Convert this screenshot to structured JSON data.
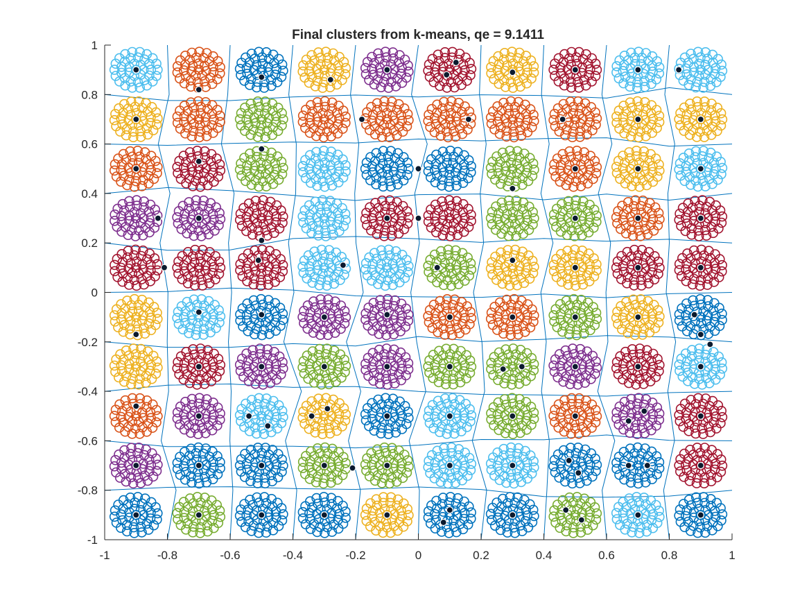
{
  "chart_data": {
    "type": "scatter",
    "title": "Final clusters from k-means, qe =  9.1411",
    "xlabel": "",
    "ylabel": "",
    "xlim": [
      -1,
      1
    ],
    "ylim": [
      -1,
      1
    ],
    "x_ticks": [
      "-1",
      "-0.8",
      "-0.6",
      "-0.4",
      "-0.2",
      "0",
      "0.2",
      "0.4",
      "0.6",
      "0.8",
      "1"
    ],
    "y_ticks": [
      "1",
      "0.8",
      "0.6",
      "0.4",
      "0.2",
      "0",
      "-0.2",
      "-0.4",
      "-0.6",
      "-0.8",
      "-1"
    ],
    "grid": false,
    "palette": [
      "#0072BD",
      "#D95319",
      "#EDB120",
      "#7E2F8E",
      "#77AC30",
      "#4DBEEE",
      "#A2142F"
    ],
    "voronoi_color": "#0072BD",
    "blob_centers": {
      "x": [
        -0.9,
        -0.7,
        -0.5,
        -0.3,
        -0.1,
        0.1,
        0.3,
        0.5,
        0.7,
        0.9
      ],
      "y": [
        0.9,
        0.7,
        0.5,
        0.3,
        0.1,
        -0.1,
        -0.3,
        -0.5,
        -0.7,
        -0.9
      ],
      "colors": [
        [
          5,
          1,
          0,
          2,
          3,
          6,
          2,
          6,
          5,
          5
        ],
        [
          2,
          1,
          4,
          1,
          1,
          1,
          1,
          1,
          2,
          2
        ],
        [
          1,
          6,
          4,
          5,
          0,
          0,
          4,
          1,
          2,
          5
        ],
        [
          3,
          3,
          6,
          5,
          6,
          6,
          4,
          4,
          1,
          6
        ],
        [
          6,
          6,
          6,
          5,
          5,
          4,
          2,
          2,
          6,
          6
        ],
        [
          2,
          5,
          0,
          3,
          3,
          1,
          1,
          4,
          2,
          0
        ],
        [
          2,
          6,
          3,
          4,
          3,
          4,
          4,
          3,
          6,
          5
        ],
        [
          1,
          3,
          5,
          2,
          0,
          5,
          4,
          1,
          3,
          6
        ],
        [
          3,
          0,
          0,
          4,
          4,
          5,
          5,
          0,
          0,
          6
        ],
        [
          0,
          4,
          0,
          0,
          2,
          0,
          0,
          4,
          5,
          0
        ]
      ]
    },
    "centroids": {
      "x": [
        -0.9,
        -0.7,
        -0.5,
        -0.28,
        -0.1,
        0.12,
        0.09,
        0.3,
        0.5,
        0.7,
        0.83,
        -0.9,
        -0.7,
        -0.18,
        0.16,
        0.46,
        0.7,
        0.9,
        -0.9,
        -0.7,
        -0.5,
        0.0,
        0.3,
        0.5,
        0.7,
        0.9,
        -0.81,
        -0.5,
        -0.1,
        0.0,
        0.5,
        0.7,
        0.9,
        -0.83,
        -0.51,
        -0.24,
        0.06,
        0.3,
        0.5,
        0.7,
        0.9,
        -0.7,
        -0.5,
        -0.3,
        -0.1,
        0.1,
        0.3,
        0.5,
        0.7,
        0.88,
        0.93,
        -0.9,
        -0.7,
        -0.5,
        -0.3,
        -0.1,
        0.1,
        0.27,
        0.33,
        0.5,
        0.7,
        0.9,
        0.9,
        -0.9,
        -0.7,
        -0.54,
        -0.48,
        -0.34,
        -0.29,
        -0.1,
        0.1,
        0.3,
        0.5,
        0.67,
        0.72,
        0.9,
        -0.9,
        -0.7,
        -0.5,
        -0.3,
        -0.21,
        -0.1,
        0.1,
        0.3,
        0.48,
        0.51,
        0.67,
        0.73,
        0.9,
        -0.9,
        -0.7,
        -0.5,
        -0.3,
        -0.1,
        0.08,
        0.1,
        0.3,
        0.47,
        0.52,
        0.7,
        0.9
      ],
      "y": [
        0.9,
        0.82,
        0.87,
        0.86,
        0.9,
        0.93,
        0.88,
        0.89,
        0.9,
        0.9,
        0.9,
        0.7,
        0.53,
        0.7,
        0.7,
        0.7,
        0.7,
        0.7,
        0.5,
        0.3,
        0.58,
        0.5,
        0.42,
        0.5,
        0.5,
        0.5,
        0.1,
        0.21,
        0.3,
        0.3,
        0.3,
        0.3,
        0.3,
        0.3,
        0.13,
        0.11,
        0.1,
        0.13,
        0.1,
        0.1,
        0.1,
        -0.08,
        -0.09,
        -0.1,
        -0.09,
        -0.1,
        -0.1,
        -0.1,
        -0.1,
        -0.09,
        -0.21,
        -0.17,
        -0.3,
        -0.3,
        -0.3,
        -0.3,
        -0.3,
        -0.31,
        -0.3,
        -0.3,
        -0.3,
        -0.3,
        -0.17,
        -0.46,
        -0.5,
        -0.5,
        -0.54,
        -0.5,
        -0.47,
        -0.5,
        -0.5,
        -0.5,
        -0.5,
        -0.52,
        -0.48,
        -0.5,
        -0.7,
        -0.7,
        -0.7,
        -0.7,
        -0.71,
        -0.7,
        -0.7,
        -0.7,
        -0.68,
        -0.73,
        -0.7,
        -0.7,
        -0.7,
        -0.9,
        -0.9,
        -0.9,
        -0.9,
        -0.9,
        -0.93,
        -0.88,
        -0.9,
        -0.88,
        -0.92,
        -0.9,
        -0.9
      ]
    }
  }
}
